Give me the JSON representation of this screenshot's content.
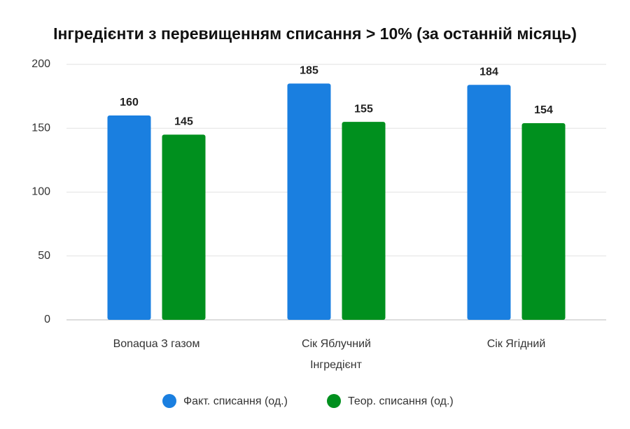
{
  "chart_data": {
    "type": "bar",
    "title": "Інгредієнти з перевищенням списання > 10% (за останній місяць)",
    "x_label": "Інгредієнт",
    "categories": [
      "Bonaqua З газом",
      "Сік Яблучний",
      "Сік Ягідний"
    ],
    "series": [
      {
        "name": "Факт. списання (од.)",
        "color": "#1a7fe0",
        "values": [
          160,
          185,
          184
        ]
      },
      {
        "name": "Теор. списання (од.)",
        "color": "#00901e",
        "values": [
          145,
          155,
          154
        ]
      }
    ],
    "ylim": [
      0,
      200
    ],
    "yticks": [
      0,
      50,
      100,
      150,
      200
    ],
    "grid": true,
    "legend": "bottom"
  }
}
